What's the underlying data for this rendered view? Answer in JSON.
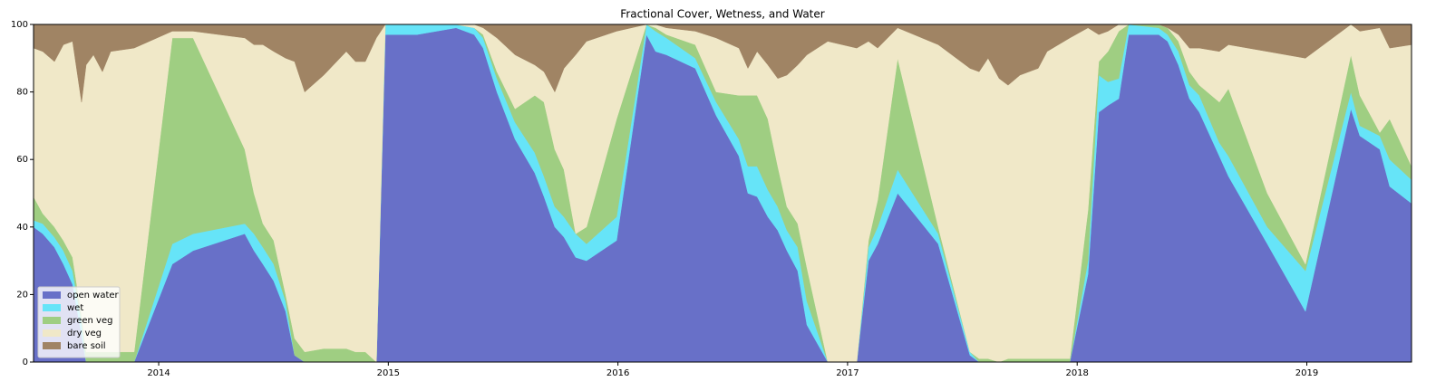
{
  "chart_data": {
    "type": "stacked_area",
    "title": "Fractional Cover, Wetness, and Water",
    "x": [
      2013.455,
      2013.495,
      2013.546,
      2013.585,
      2013.625,
      2013.664,
      2013.684,
      2013.716,
      2013.755,
      2013.791,
      2013.893,
      2014.059,
      2014.15,
      2014.375,
      2014.415,
      2014.454,
      2014.501,
      2014.553,
      2014.592,
      2014.636,
      2014.719,
      2014.817,
      2014.857,
      2014.9,
      2014.948,
      2014.987,
      2015.125,
      2015.295,
      2015.374,
      2015.413,
      2015.473,
      2015.552,
      2015.638,
      2015.678,
      2015.725,
      2015.765,
      2015.816,
      2015.863,
      2015.994,
      2016.124,
      2016.164,
      2016.211,
      2016.337,
      2016.428,
      2016.527,
      2016.566,
      2016.606,
      2016.653,
      2016.696,
      2016.736,
      2016.783,
      2016.823,
      2016.914,
      2017.04,
      2017.091,
      2017.131,
      2017.218,
      2017.395,
      2017.533,
      2017.573,
      2017.612,
      2017.66,
      2017.699,
      2017.751,
      2017.83,
      2017.869,
      2017.968,
      2018.047,
      2018.094,
      2018.134,
      2018.181,
      2018.224,
      2018.355,
      2018.394,
      2018.441,
      2018.489,
      2018.532,
      2018.619,
      2018.659,
      2018.828,
      2018.994,
      2019.192,
      2019.231,
      2019.318,
      2019.361,
      2019.456
    ],
    "series": [
      {
        "name": "open water",
        "color": "#6870c8",
        "values": [
          40,
          38,
          34,
          29,
          23,
          8,
          0,
          0,
          0,
          0,
          0,
          29,
          33,
          38,
          33,
          29,
          24,
          15,
          2,
          0,
          0,
          0,
          0,
          0,
          0,
          97,
          97,
          99,
          97,
          93,
          80,
          66,
          56,
          49,
          40,
          37,
          31,
          30,
          36,
          97,
          92,
          91,
          87,
          73,
          61,
          50,
          49,
          43,
          39,
          33,
          27,
          11,
          0,
          0,
          30,
          35,
          50,
          35,
          2,
          0,
          0,
          0,
          0,
          0,
          0,
          0,
          0,
          26,
          74,
          76,
          78,
          97,
          97,
          95,
          88,
          78,
          74,
          61,
          55,
          35,
          15,
          75,
          67,
          63,
          52,
          47
        ]
      },
      {
        "name": "wet",
        "color": "#66e4f8",
        "values": [
          2,
          3,
          3,
          4,
          4,
          4,
          0,
          0,
          0,
          0,
          0,
          6,
          5,
          3,
          5,
          5,
          5,
          3,
          0,
          0,
          0,
          0,
          0,
          0,
          0,
          3,
          3,
          1,
          2,
          3,
          4,
          5,
          6,
          6,
          6,
          6,
          7,
          5,
          7,
          3,
          6,
          5,
          3,
          4,
          5,
          8,
          9,
          8,
          7,
          6,
          7,
          7,
          0,
          0,
          4,
          5,
          7,
          3,
          1,
          0,
          0,
          0,
          0,
          0,
          0,
          0,
          0,
          4,
          11,
          7,
          6,
          3,
          2,
          2,
          4,
          4,
          5,
          4,
          6,
          5,
          12,
          5,
          3,
          4,
          8,
          7
        ]
      },
      {
        "name": "green veg",
        "color": "#9fce82",
        "values": [
          7,
          3,
          3,
          3,
          4,
          2,
          3,
          3,
          3,
          3,
          3,
          61,
          58,
          22,
          12,
          7,
          7,
          2,
          5,
          3,
          4,
          4,
          3,
          3,
          0,
          0,
          0,
          0,
          0,
          1,
          2,
          4,
          17,
          22,
          17,
          14,
          0,
          5,
          29,
          0,
          1,
          1,
          4,
          3,
          13,
          21,
          21,
          21,
          12,
          7,
          7,
          10,
          0,
          0,
          2,
          8,
          33,
          2,
          0,
          1,
          1,
          0,
          1,
          1,
          1,
          1,
          1,
          15,
          4,
          9,
          14,
          0,
          1,
          2,
          3,
          4,
          3,
          12,
          20,
          10,
          2,
          11,
          9,
          1,
          12,
          4
        ]
      },
      {
        "name": "dry veg",
        "color": "#f0e8c8",
        "values": [
          44,
          48,
          49,
          58,
          64,
          63,
          85,
          88,
          83,
          89,
          90,
          2,
          2,
          33,
          44,
          53,
          56,
          70,
          82,
          77,
          81,
          88,
          86,
          86,
          96,
          0,
          0,
          0,
          1,
          2,
          10,
          16,
          9,
          9,
          17,
          30,
          53,
          55,
          26,
          0,
          1,
          2,
          4,
          16,
          14,
          8,
          13,
          16,
          26,
          39,
          47,
          63,
          95,
          93,
          59,
          45,
          9,
          54,
          84,
          85,
          89,
          84,
          81,
          84,
          86,
          91,
          95,
          54,
          8,
          6,
          2,
          0,
          0,
          0,
          2,
          7,
          11,
          15,
          13,
          42,
          61,
          9,
          19,
          31,
          21,
          36
        ]
      },
      {
        "name": "bare soil",
        "color": "#a08464",
        "values": [
          7,
          8,
          11,
          6,
          5,
          23,
          12,
          9,
          14,
          8,
          7,
          2,
          2,
          4,
          6,
          6,
          8,
          10,
          11,
          20,
          15,
          8,
          11,
          11,
          4,
          0,
          0,
          0,
          0,
          1,
          4,
          9,
          12,
          14,
          20,
          13,
          9,
          5,
          2,
          0,
          0,
          1,
          2,
          4,
          7,
          13,
          8,
          12,
          16,
          15,
          12,
          9,
          5,
          7,
          5,
          7,
          1,
          6,
          13,
          14,
          10,
          16,
          18,
          15,
          13,
          8,
          4,
          1,
          3,
          2,
          0,
          0,
          0,
          1,
          3,
          7,
          7,
          8,
          6,
          8,
          10,
          0,
          2,
          1,
          7,
          6
        ]
      }
    ],
    "xlim": [
      2013.455,
      2019.456
    ],
    "xticks": [
      2014,
      2015,
      2016,
      2017,
      2018,
      2019
    ],
    "ylim": [
      0,
      100
    ],
    "yticks": [
      0,
      20,
      40,
      60,
      80,
      100
    ],
    "grid": false,
    "legend": "lower left"
  }
}
